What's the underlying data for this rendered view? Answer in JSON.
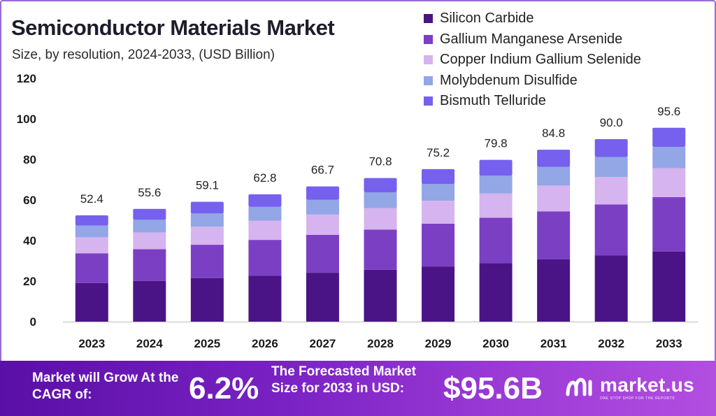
{
  "chart_data": {
    "type": "bar",
    "stacked": true,
    "title": "Semiconductor Materials Market",
    "subtitle": "Size, by resolution, 2024-2033, (USD Billion)",
    "categories": [
      "2023",
      "2024",
      "2025",
      "2026",
      "2027",
      "2028",
      "2029",
      "2030",
      "2031",
      "2032",
      "2033"
    ],
    "totals": [
      "52.4",
      "55.6",
      "59.1",
      "62.8",
      "66.7",
      "70.8",
      "75.2",
      "79.8",
      "84.8",
      "90.0",
      "95.6"
    ],
    "ylim": [
      0,
      120
    ],
    "yticks": [
      "0",
      "20",
      "40",
      "60",
      "80",
      "100",
      "120"
    ],
    "legend_position": "top-right",
    "grid": false,
    "series": [
      {
        "name": "Silicon Carbide",
        "color": "#4a1486",
        "values": [
          19.0,
          20.1,
          21.4,
          22.7,
          24.1,
          25.6,
          27.2,
          28.9,
          30.7,
          32.6,
          34.6
        ]
      },
      {
        "name": "Gallium Manganese Arsenide",
        "color": "#7b3fc4",
        "values": [
          14.7,
          15.6,
          16.5,
          17.6,
          18.7,
          19.8,
          21.1,
          22.3,
          23.7,
          25.2,
          26.8
        ]
      },
      {
        "name": "Copper Indium Gallium Selenide",
        "color": "#d6b4ef",
        "values": [
          7.9,
          8.3,
          8.9,
          9.4,
          10.0,
          10.6,
          11.3,
          12.0,
          12.7,
          13.5,
          14.3
        ]
      },
      {
        "name": "Molybdenum Disulfide",
        "color": "#93a6e6",
        "values": [
          5.8,
          6.2,
          6.5,
          6.9,
          7.3,
          7.8,
          8.3,
          8.8,
          9.3,
          9.9,
          10.5
        ]
      },
      {
        "name": "Bismuth Telluride",
        "color": "#7660ee",
        "values": [
          5.0,
          5.4,
          5.8,
          6.2,
          6.6,
          7.0,
          7.3,
          7.8,
          8.4,
          8.8,
          9.4
        ]
      }
    ]
  },
  "banner": {
    "cagr_label": "Market will Grow At the CAGR of:",
    "cagr_value": "6.2%",
    "forecast_label": "The Forecasted Market Size for 2033 in USD:",
    "forecast_value": "$95.6B",
    "brand_name": "market.us",
    "brand_tagline": "ONE STOP SHOP FOR THE REPORTS"
  }
}
